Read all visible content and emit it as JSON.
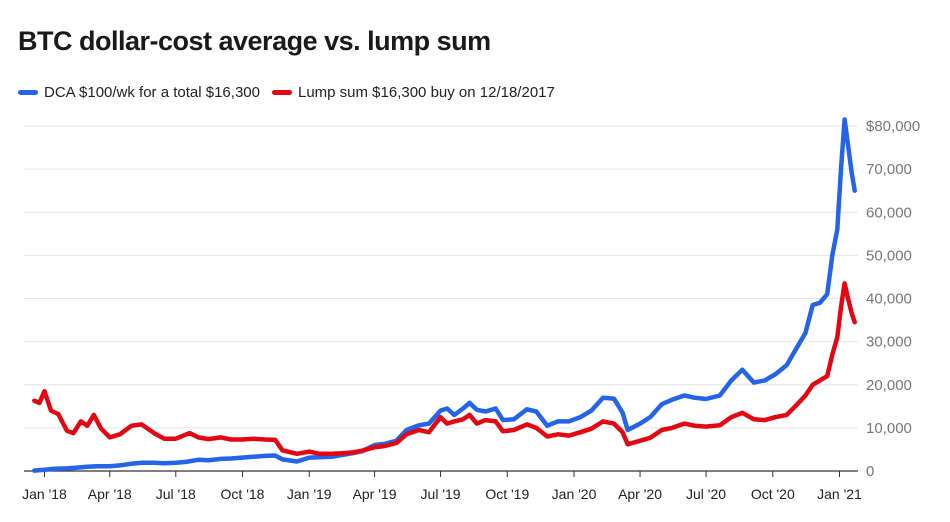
{
  "chart_data": {
    "type": "line",
    "title": "BTC dollar-cost average vs. lump sum",
    "xlabel": "",
    "ylabel": "",
    "ylim": [
      0,
      80000
    ],
    "y_ticks": [
      {
        "value": 0,
        "label": "0"
      },
      {
        "value": 10000,
        "label": "10,000"
      },
      {
        "value": 20000,
        "label": "20,000"
      },
      {
        "value": 30000,
        "label": "30,000"
      },
      {
        "value": 40000,
        "label": "40,000"
      },
      {
        "value": 50000,
        "label": "50,000"
      },
      {
        "value": 60000,
        "label": "60,000"
      },
      {
        "value": 70000,
        "label": "70,000"
      },
      {
        "value": 80000,
        "label": "$80,000"
      }
    ],
    "x_ticks": [
      "Jan '18",
      "Apr '18",
      "Jul '18",
      "Oct '18",
      "Jan '19",
      "Apr '19",
      "Jul '19",
      "Oct '19",
      "Jan '20",
      "Apr '20",
      "Jul '20",
      "Oct '20",
      "Jan '21"
    ],
    "x_tick_dates": [
      "2018-01-01",
      "2018-04-01",
      "2018-07-01",
      "2018-10-01",
      "2019-01-01",
      "2019-04-01",
      "2019-07-01",
      "2019-10-01",
      "2020-01-01",
      "2020-04-01",
      "2020-07-01",
      "2020-10-01",
      "2021-01-01"
    ],
    "grid": true,
    "legend_position": "top-left",
    "series": [
      {
        "name": "DCA $100/wk for a total $16,300",
        "color": "#2563e8",
        "points": [
          [
            "2017-12-18",
            100
          ],
          [
            "2018-01-01",
            300
          ],
          [
            "2018-01-15",
            500
          ],
          [
            "2018-02-01",
            600
          ],
          [
            "2018-02-15",
            800
          ],
          [
            "2018-03-01",
            1000
          ],
          [
            "2018-03-15",
            1100
          ],
          [
            "2018-04-01",
            1100
          ],
          [
            "2018-04-15",
            1300
          ],
          [
            "2018-05-01",
            1700
          ],
          [
            "2018-05-15",
            1900
          ],
          [
            "2018-06-01",
            1900
          ],
          [
            "2018-06-15",
            1800
          ],
          [
            "2018-07-01",
            1900
          ],
          [
            "2018-07-15",
            2100
          ],
          [
            "2018-08-01",
            2600
          ],
          [
            "2018-08-15",
            2500
          ],
          [
            "2018-09-01",
            2800
          ],
          [
            "2018-09-15",
            2900
          ],
          [
            "2018-10-01",
            3100
          ],
          [
            "2018-10-15",
            3300
          ],
          [
            "2018-11-01",
            3500
          ],
          [
            "2018-11-15",
            3600
          ],
          [
            "2018-11-25",
            2700
          ],
          [
            "2018-12-15",
            2200
          ],
          [
            "2019-01-01",
            3100
          ],
          [
            "2019-01-15",
            3200
          ],
          [
            "2019-02-01",
            3300
          ],
          [
            "2019-02-15",
            3700
          ],
          [
            "2019-03-01",
            4100
          ],
          [
            "2019-03-15",
            4600
          ],
          [
            "2019-04-01",
            6000
          ],
          [
            "2019-04-15",
            6300
          ],
          [
            "2019-05-01",
            7000
          ],
          [
            "2019-05-15",
            9500
          ],
          [
            "2019-06-01",
            10600
          ],
          [
            "2019-06-15",
            11000
          ],
          [
            "2019-07-01",
            14000
          ],
          [
            "2019-07-10",
            14500
          ],
          [
            "2019-07-20",
            13000
          ],
          [
            "2019-08-01",
            14500
          ],
          [
            "2019-08-10",
            15800
          ],
          [
            "2019-08-20",
            14200
          ],
          [
            "2019-09-01",
            13800
          ],
          [
            "2019-09-15",
            14500
          ],
          [
            "2019-09-25",
            11800
          ],
          [
            "2019-10-10",
            12000
          ],
          [
            "2019-10-28",
            14300
          ],
          [
            "2019-11-10",
            13800
          ],
          [
            "2019-11-25",
            10500
          ],
          [
            "2019-12-10",
            11500
          ],
          [
            "2019-12-25",
            11500
          ],
          [
            "2020-01-10",
            12500
          ],
          [
            "2020-01-25",
            14000
          ],
          [
            "2020-02-10",
            17000
          ],
          [
            "2020-02-25",
            16800
          ],
          [
            "2020-03-08",
            13500
          ],
          [
            "2020-03-15",
            9500
          ],
          [
            "2020-04-01",
            11000
          ],
          [
            "2020-04-15",
            12500
          ],
          [
            "2020-05-01",
            15500
          ],
          [
            "2020-05-15",
            16500
          ],
          [
            "2020-06-01",
            17500
          ],
          [
            "2020-06-15",
            17000
          ],
          [
            "2020-07-01",
            16700
          ],
          [
            "2020-07-20",
            17500
          ],
          [
            "2020-08-05",
            21000
          ],
          [
            "2020-08-20",
            23500
          ],
          [
            "2020-09-05",
            20500
          ],
          [
            "2020-09-20",
            21000
          ],
          [
            "2020-10-05",
            22500
          ],
          [
            "2020-10-20",
            24500
          ],
          [
            "2020-11-01",
            28000
          ],
          [
            "2020-11-15",
            32000
          ],
          [
            "2020-11-25",
            38500
          ],
          [
            "2020-12-05",
            39000
          ],
          [
            "2020-12-15",
            41000
          ],
          [
            "2020-12-22",
            50000
          ],
          [
            "2020-12-29",
            56000
          ],
          [
            "2021-01-03",
            70000
          ],
          [
            "2021-01-08",
            81500
          ],
          [
            "2021-01-12",
            76500
          ],
          [
            "2021-01-18",
            69000
          ],
          [
            "2021-01-22",
            65000
          ]
        ]
      },
      {
        "name": "Lump sum $16,300 buy on 12/18/2017",
        "color": "#e30613",
        "points": [
          [
            "2017-12-18",
            16300
          ],
          [
            "2017-12-25",
            15800
          ],
          [
            "2018-01-01",
            18500
          ],
          [
            "2018-01-10",
            14000
          ],
          [
            "2018-01-20",
            13200
          ],
          [
            "2018-02-01",
            9300
          ],
          [
            "2018-02-10",
            8800
          ],
          [
            "2018-02-20",
            11500
          ],
          [
            "2018-03-01",
            10500
          ],
          [
            "2018-03-10",
            13000
          ],
          [
            "2018-03-20",
            9800
          ],
          [
            "2018-04-01",
            7800
          ],
          [
            "2018-04-15",
            8500
          ],
          [
            "2018-05-01",
            10500
          ],
          [
            "2018-05-15",
            10800
          ],
          [
            "2018-06-01",
            8800
          ],
          [
            "2018-06-15",
            7500
          ],
          [
            "2018-07-01",
            7500
          ],
          [
            "2018-07-20",
            8800
          ],
          [
            "2018-08-01",
            7800
          ],
          [
            "2018-08-15",
            7400
          ],
          [
            "2018-09-01",
            7800
          ],
          [
            "2018-09-15",
            7300
          ],
          [
            "2018-10-01",
            7300
          ],
          [
            "2018-10-15",
            7500
          ],
          [
            "2018-11-01",
            7300
          ],
          [
            "2018-11-15",
            7200
          ],
          [
            "2018-11-25",
            4800
          ],
          [
            "2018-12-15",
            4000
          ],
          [
            "2019-01-01",
            4500
          ],
          [
            "2019-01-15",
            4000
          ],
          [
            "2019-02-01",
            4000
          ],
          [
            "2019-02-15",
            4100
          ],
          [
            "2019-03-01",
            4300
          ],
          [
            "2019-03-15",
            4700
          ],
          [
            "2019-04-01",
            5500
          ],
          [
            "2019-04-15",
            5800
          ],
          [
            "2019-05-01",
            6500
          ],
          [
            "2019-05-15",
            8500
          ],
          [
            "2019-06-01",
            9500
          ],
          [
            "2019-06-15",
            9000
          ],
          [
            "2019-07-01",
            12500
          ],
          [
            "2019-07-10",
            11000
          ],
          [
            "2019-07-20",
            11500
          ],
          [
            "2019-08-01",
            12000
          ],
          [
            "2019-08-10",
            13000
          ],
          [
            "2019-08-20",
            11000
          ],
          [
            "2019-09-01",
            11800
          ],
          [
            "2019-09-15",
            11500
          ],
          [
            "2019-09-25",
            9200
          ],
          [
            "2019-10-10",
            9500
          ],
          [
            "2019-10-28",
            10800
          ],
          [
            "2019-11-10",
            10000
          ],
          [
            "2019-11-25",
            8000
          ],
          [
            "2019-12-10",
            8500
          ],
          [
            "2019-12-25",
            8200
          ],
          [
            "2020-01-10",
            9000
          ],
          [
            "2020-01-25",
            9800
          ],
          [
            "2020-02-10",
            11500
          ],
          [
            "2020-02-25",
            11000
          ],
          [
            "2020-03-08",
            9000
          ],
          [
            "2020-03-15",
            6200
          ],
          [
            "2020-04-01",
            7000
          ],
          [
            "2020-04-15",
            7700
          ],
          [
            "2020-05-01",
            9500
          ],
          [
            "2020-05-15",
            10000
          ],
          [
            "2020-06-01",
            11000
          ],
          [
            "2020-06-15",
            10500
          ],
          [
            "2020-07-01",
            10300
          ],
          [
            "2020-07-20",
            10600
          ],
          [
            "2020-08-05",
            12500
          ],
          [
            "2020-08-20",
            13500
          ],
          [
            "2020-09-05",
            12000
          ],
          [
            "2020-09-20",
            11800
          ],
          [
            "2020-10-05",
            12500
          ],
          [
            "2020-10-20",
            13000
          ],
          [
            "2020-11-01",
            15000
          ],
          [
            "2020-11-15",
            17500
          ],
          [
            "2020-11-25",
            20000
          ],
          [
            "2020-12-05",
            21000
          ],
          [
            "2020-12-15",
            22000
          ],
          [
            "2020-12-22",
            27000
          ],
          [
            "2020-12-29",
            31000
          ],
          [
            "2021-01-03",
            38000
          ],
          [
            "2021-01-08",
            43500
          ],
          [
            "2021-01-12",
            40500
          ],
          [
            "2021-01-18",
            36500
          ],
          [
            "2021-01-22",
            34500
          ]
        ]
      }
    ]
  }
}
